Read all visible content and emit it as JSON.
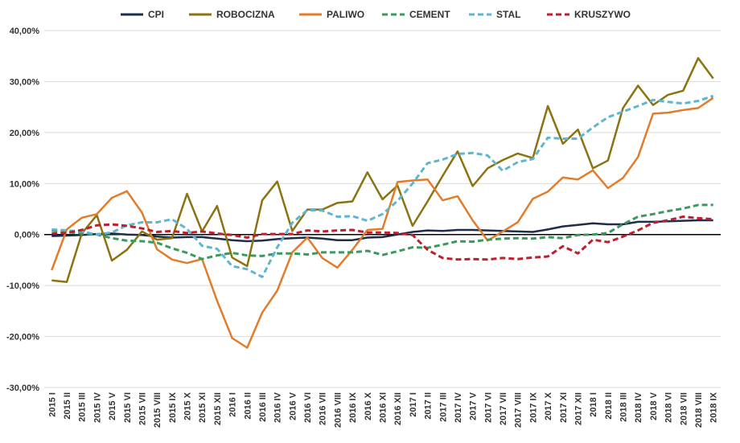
{
  "chart_data": {
    "type": "line",
    "title": "",
    "xlabel": "",
    "ylabel": "",
    "ylim": [
      -30,
      40
    ],
    "yticks": [
      "-30,00%",
      "-20,00%",
      "-10,00%",
      "0,00%",
      "10,00%",
      "20,00%",
      "30,00%",
      "40,00%"
    ],
    "grid": "horizontal",
    "legend_position": "top",
    "categories": [
      "2015 I",
      "2015 II",
      "2015 III",
      "2015 IV",
      "2015 V",
      "2015 VI",
      "2015 VII",
      "2015 VIII",
      "2015 IX",
      "2015 X",
      "2015 XI",
      "2015 XII",
      "2016 I",
      "2016 II",
      "2016 III",
      "2016 IV",
      "2016 V",
      "2016 VI",
      "2016 VII",
      "2016 VIII",
      "2016 IX",
      "2016 X",
      "2016 XI",
      "2016 XII",
      "2017 I",
      "2017 II",
      "2017 III",
      "2017 IV",
      "2017 V",
      "2017 VI",
      "2017 VII",
      "2017 VIII",
      "2017 IX",
      "2017 X",
      "2017 XI",
      "2017 XII",
      "2018 I",
      "2018 II",
      "2018 III",
      "2018 IV",
      "2018 V",
      "2018 VI",
      "2018 VII",
      "2018 VIII",
      "2018 IX"
    ],
    "series": [
      {
        "name": "CPI",
        "color": "#1f2d4d",
        "dash": "solid",
        "values": [
          -0.3,
          -0.2,
          -0.1,
          0.1,
          0.2,
          0.0,
          -0.1,
          -0.4,
          -0.6,
          -0.5,
          -0.5,
          -0.8,
          -1.1,
          -1.3,
          -1.2,
          -0.9,
          -0.7,
          -0.6,
          -0.8,
          -1.1,
          -1.1,
          -0.6,
          -0.5,
          0.0,
          0.5,
          0.8,
          0.7,
          0.9,
          0.9,
          0.8,
          0.7,
          0.6,
          0.5,
          1.0,
          1.6,
          1.9,
          2.2,
          2.0,
          2.0,
          2.5,
          2.5,
          2.6,
          2.7,
          2.8,
          2.8
        ]
      },
      {
        "name": "ROBOCIZNA",
        "color": "#8b7312",
        "dash": "solid",
        "values": [
          -9.0,
          -9.3,
          0.2,
          3.8,
          -5.1,
          -3.0,
          0.6,
          -1.0,
          -0.7,
          8.0,
          0.6,
          5.6,
          -4.5,
          -6.2,
          6.7,
          10.4,
          0.7,
          4.9,
          4.9,
          6.2,
          6.5,
          12.2,
          6.9,
          9.6,
          1.7,
          6.5,
          11.5,
          16.3,
          9.5,
          13.0,
          14.6,
          15.9,
          15.0,
          25.2,
          17.8,
          20.6,
          13.0,
          14.5,
          24.8,
          29.2,
          25.4,
          27.4,
          28.2,
          34.6,
          30.6
        ]
      },
      {
        "name": "PALIWO",
        "color": "#e37c2a",
        "dash": "solid",
        "values": [
          -7.0,
          1.0,
          3.3,
          4.0,
          7.2,
          8.5,
          4.3,
          -2.9,
          -4.9,
          -5.6,
          -4.8,
          -13.0,
          -20.3,
          -22.2,
          -15.3,
          -11.0,
          -3.5,
          -0.6,
          -4.6,
          -6.5,
          -3.0,
          0.9,
          1.1,
          10.3,
          10.6,
          10.8,
          6.7,
          7.5,
          2.8,
          -1.2,
          0.6,
          2.4,
          7.0,
          8.4,
          11.2,
          10.8,
          12.6,
          9.1,
          11.1,
          15.2,
          23.7,
          23.9,
          24.4,
          24.8,
          26.8
        ]
      },
      {
        "name": "CEMENT",
        "color": "#3a9a5b",
        "dash": "dashed",
        "values": [
          0.8,
          0.5,
          0.2,
          0.0,
          -0.7,
          -1.2,
          -1.3,
          -1.6,
          -2.7,
          -3.6,
          -4.8,
          -4.1,
          -3.6,
          -4.1,
          -4.2,
          -3.7,
          -3.7,
          -3.9,
          -3.5,
          -3.5,
          -3.5,
          -3.2,
          -4.0,
          -3.3,
          -2.5,
          -2.6,
          -2.0,
          -1.3,
          -1.4,
          -1.0,
          -0.8,
          -0.7,
          -0.8,
          -0.5,
          -0.7,
          -0.1,
          0.0,
          0.3,
          2.0,
          3.5,
          4.0,
          4.6,
          5.1,
          5.8,
          5.8
        ]
      },
      {
        "name": "STAL",
        "color": "#5fb6cf",
        "dash": "dashed",
        "values": [
          1.0,
          0.8,
          0.6,
          0.0,
          0.4,
          1.8,
          2.4,
          2.4,
          3.0,
          1.1,
          -2.2,
          -2.8,
          -6.2,
          -6.8,
          -8.3,
          -2.5,
          2.3,
          4.8,
          4.7,
          3.5,
          3.6,
          2.7,
          4.0,
          6.6,
          10.0,
          14.0,
          14.7,
          15.8,
          16.0,
          15.5,
          12.5,
          14.2,
          14.8,
          19.0,
          18.8,
          18.8,
          21.0,
          23.0,
          24.1,
          25.2,
          26.4,
          26.0,
          25.7,
          26.2,
          27.2
        ]
      },
      {
        "name": "KRUSZYWO",
        "color": "#bf1e2e",
        "dash": "dashed",
        "values": [
          0.2,
          0.3,
          0.9,
          1.8,
          2.0,
          1.7,
          1.2,
          0.5,
          0.7,
          0.3,
          0.6,
          0.2,
          -0.1,
          -0.6,
          0.1,
          0.1,
          0.1,
          0.8,
          0.6,
          0.8,
          0.9,
          0.4,
          0.4,
          0.3,
          -0.1,
          -3.0,
          -4.6,
          -4.9,
          -4.8,
          -4.9,
          -4.6,
          -4.8,
          -4.5,
          -4.3,
          -2.3,
          -3.7,
          -1.0,
          -1.5,
          -0.4,
          0.8,
          2.3,
          2.8,
          3.5,
          3.2,
          3.0
        ]
      }
    ]
  }
}
